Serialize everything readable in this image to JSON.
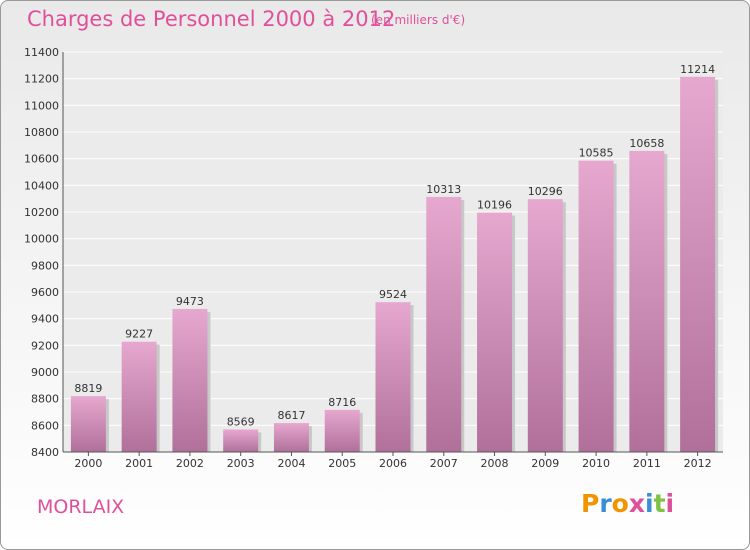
{
  "title": "Charges de Personnel 2000 à 2012",
  "subtitle": "(en milliers d'€)",
  "city": "MORLAIX",
  "logo": {
    "letters": [
      "P",
      "r",
      "o",
      "x",
      "i",
      "t",
      "i"
    ],
    "colors": [
      "#f29400",
      "#3b8ed6",
      "#f29400",
      "#e0509a",
      "#3b8ed6",
      "#7dc242",
      "#e0509a"
    ]
  },
  "colors": {
    "bar_top": "#e6a8cf",
    "bar_bottom": "#b0709a",
    "text_accent": "#e0509a"
  },
  "chart_data": {
    "type": "bar",
    "title": "Charges de Personnel 2000 à 2012",
    "subtitle": "(en milliers d'€)",
    "categories": [
      "2000",
      "2001",
      "2002",
      "2003",
      "2004",
      "2005",
      "2006",
      "2007",
      "2008",
      "2009",
      "2010",
      "2011",
      "2012"
    ],
    "values": [
      8819,
      9227,
      9473,
      8569,
      8617,
      8716,
      9524,
      10313,
      10196,
      10296,
      10585,
      10658,
      11214
    ],
    "ylim": [
      8400,
      11400
    ],
    "yticks": [
      8400,
      8600,
      8800,
      9000,
      9200,
      9400,
      9600,
      9800,
      10000,
      10200,
      10400,
      10600,
      10800,
      11000,
      11200,
      11400
    ],
    "grid": true,
    "legend": "none"
  }
}
